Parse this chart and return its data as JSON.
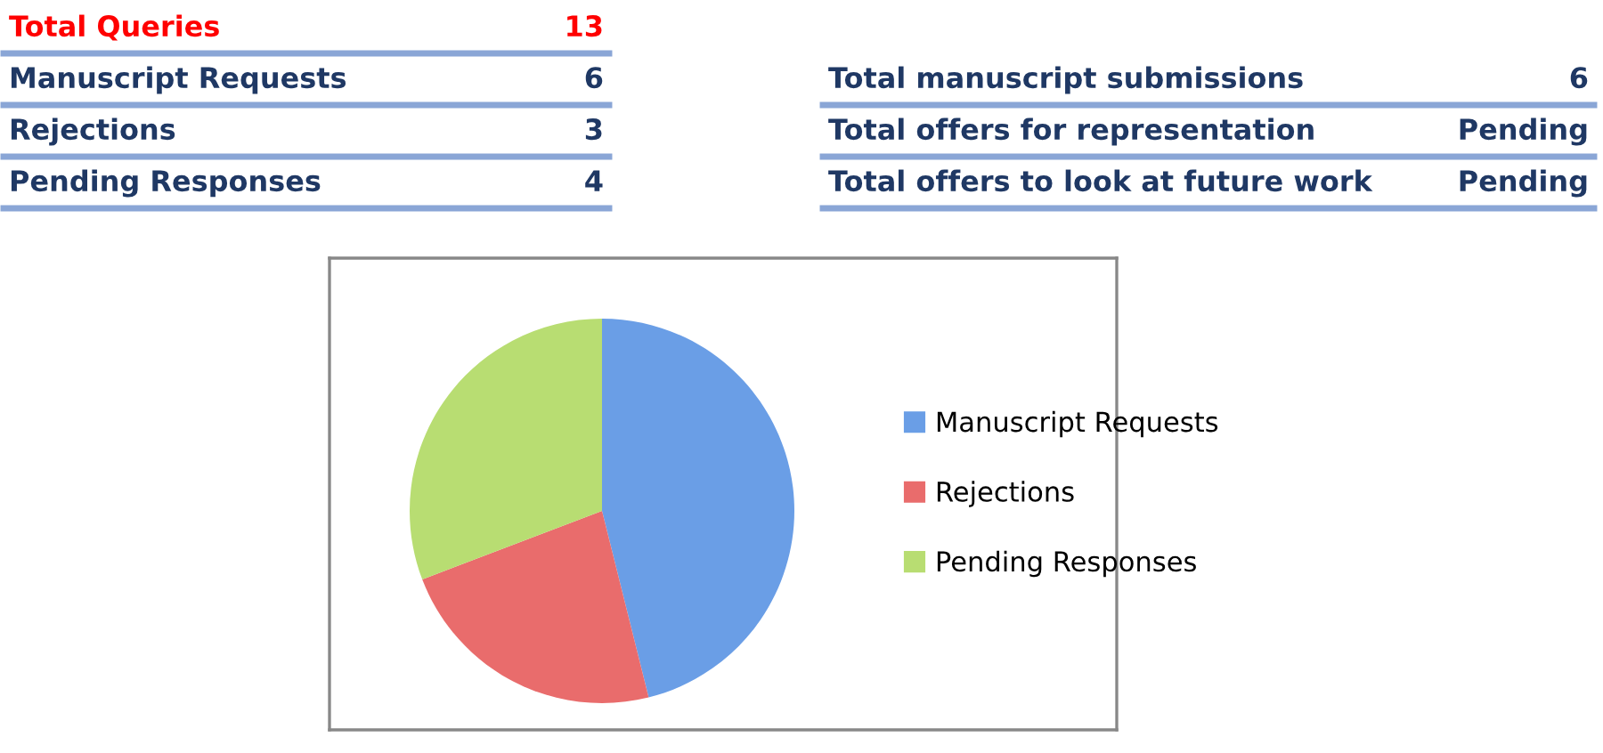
{
  "chart_data": [
    {
      "type": "other",
      "annotations": [
        "Total Queries",
        "13",
        "Manuscript Requests",
        "6",
        "Rejections",
        "3",
        "Pending Responses",
        "4"
      ]
    },
    {
      "type": "other",
      "annotations": [
        "Total manuscript submissions",
        "6",
        "Total offers for representation",
        "Pending",
        "Total offers to look at future work",
        "Pending"
      ]
    },
    {
      "type": "pie",
      "categories": [
        "Manuscript Requests",
        "Rejections",
        "Pending Responses"
      ],
      "values": [
        46.1,
        23.1,
        30.8
      ],
      "colors": [
        "#6a9ee6",
        "#e96c6c",
        "#b8dd72"
      ],
      "legend": "right"
    }
  ]
}
